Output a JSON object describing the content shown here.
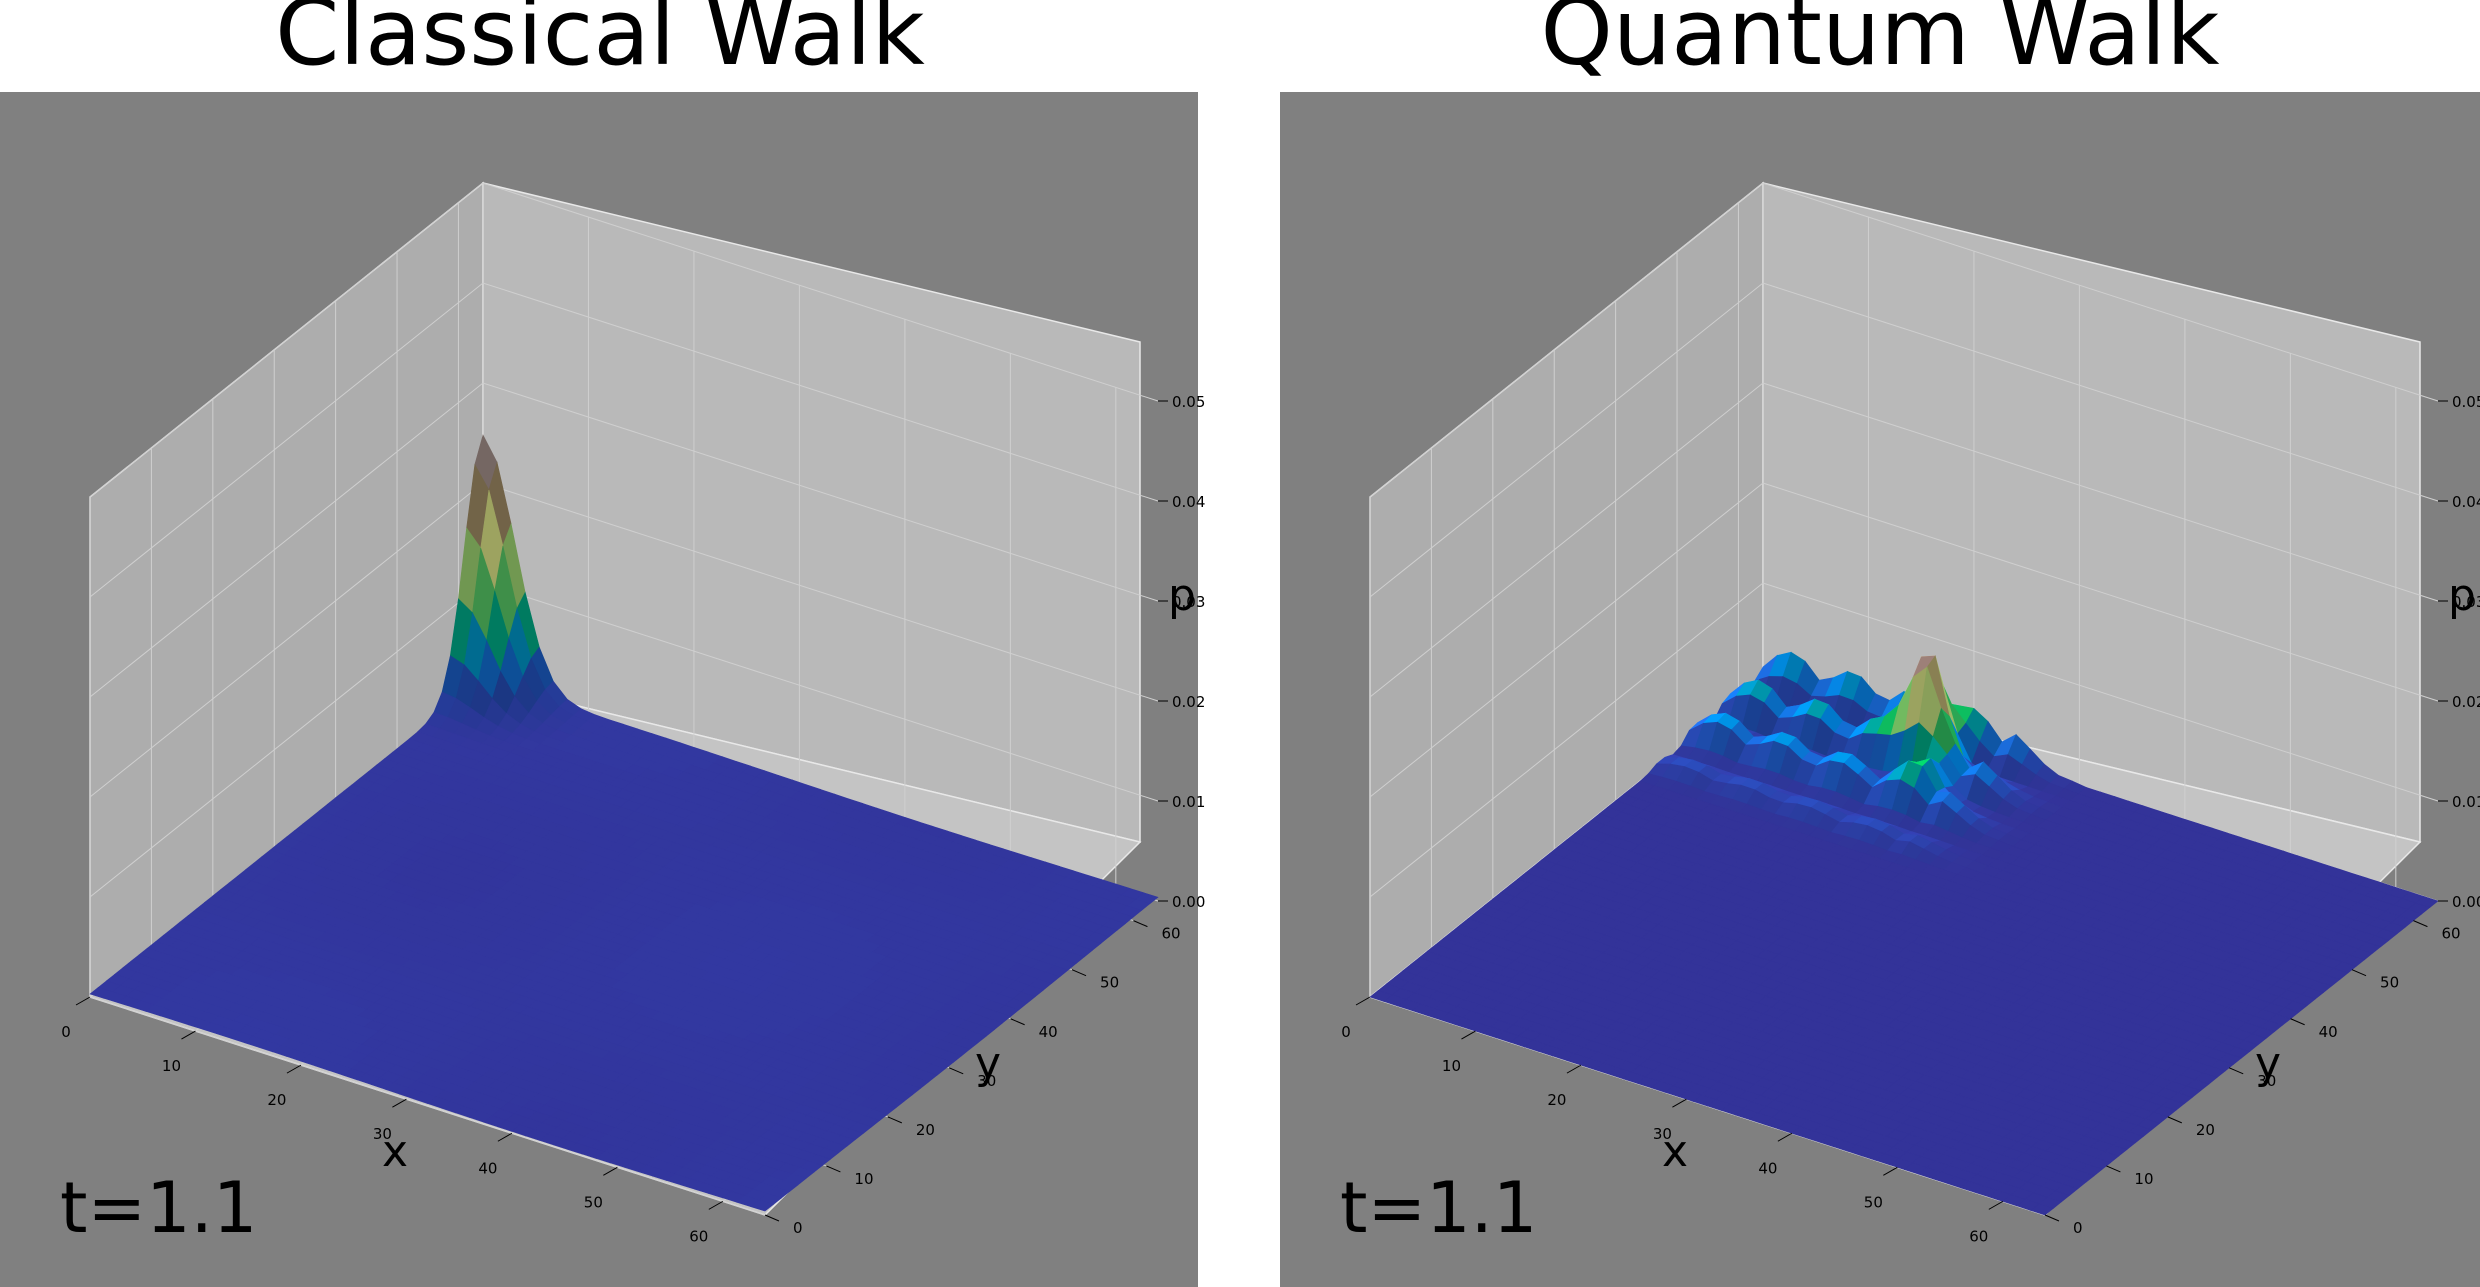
{
  "figure": {
    "background_color": "#808080",
    "pane_color": "#b4b4b4",
    "grid": true
  },
  "chart_data": [
    {
      "type": "surface3d",
      "title": "Classical Walk",
      "xlabel": "x",
      "ylabel": "y",
      "zlabel": "p",
      "time_label": "t=1.1",
      "xticks": [
        0,
        10,
        20,
        30,
        40,
        50,
        60
      ],
      "yticks": [
        0,
        10,
        20,
        30,
        40,
        50,
        60
      ],
      "zticks": [
        "0.00",
        "0.01",
        "0.02",
        "0.03",
        "0.04",
        "0.05"
      ],
      "xlim": [
        0,
        64
      ],
      "ylim": [
        0,
        64
      ],
      "zlim": [
        0,
        0.05
      ],
      "colormap": "terrain",
      "peak": {
        "x": 0,
        "y": 64,
        "p": 0.0245
      },
      "description_values": {
        "background_level_p": 0.0003
      }
    },
    {
      "type": "surface3d",
      "title": "Quantum Walk",
      "xlabel": "x",
      "ylabel": "y",
      "zlabel": "p",
      "time_label": "t=1.1",
      "xticks": [
        0,
        10,
        20,
        30,
        40,
        50,
        60
      ],
      "yticks": [
        0,
        10,
        20,
        30,
        40,
        50,
        60
      ],
      "zticks": [
        "0.00",
        "0.01",
        "0.02",
        "0.03",
        "0.04",
        "0.05"
      ],
      "xlim": [
        0,
        64
      ],
      "ylim": [
        0,
        64
      ],
      "zlim": [
        0,
        0.05
      ],
      "colormap": "terrain",
      "peak": {
        "x": 18,
        "y": 60,
        "p": 0.011
      },
      "description_values": {
        "background_level_p": 0.0
      }
    }
  ]
}
